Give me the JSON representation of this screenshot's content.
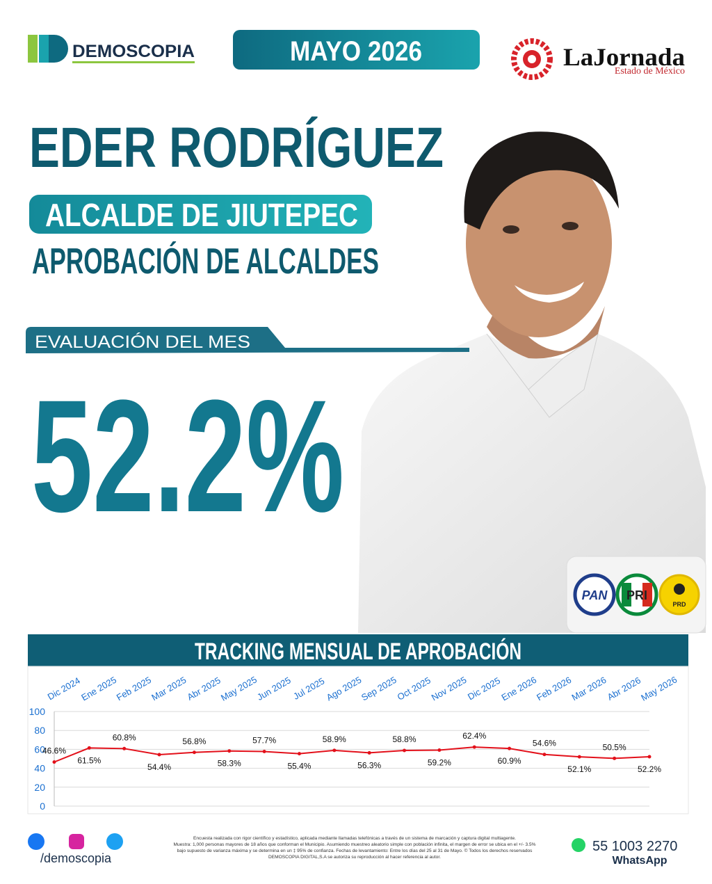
{
  "header": {
    "brand": "DEMOSCOPIA",
    "date_badge": "MAYO 2026",
    "partner": "LaJornada",
    "partner_sub": "Estado de México"
  },
  "headline": {
    "name": "EDER RODRÍGUEZ",
    "role": "ALCALDE DE JIUTEPEC",
    "topic": "APROBACIÓN DE ALCALDES"
  },
  "evaluation": {
    "label": "EVALUACIÓN DEL MES",
    "value": "52.2%"
  },
  "parties": [
    "PAN",
    "PRI",
    "PRD"
  ],
  "chart_data": {
    "type": "line",
    "title": "TRACKING MENSUAL DE APROBACIÓN",
    "categories": [
      "Dic 2024",
      "Ene 2025",
      "Feb 2025",
      "Mar 2025",
      "Abr 2025",
      "May 2025",
      "Jun 2025",
      "Jul 2025",
      "Ago 2025",
      "Sep 2025",
      "Oct 2025",
      "Nov 2025",
      "Dic 2025",
      "Ene 2026",
      "Feb 2026",
      "Mar 2026",
      "Abr 2026",
      "May 2026"
    ],
    "values": [
      46.6,
      61.5,
      60.8,
      54.4,
      56.8,
      58.3,
      57.7,
      55.4,
      58.9,
      56.3,
      58.8,
      59.2,
      62.4,
      60.9,
      54.6,
      52.1,
      50.5,
      52.2
    ],
    "value_labels": [
      "46.6%",
      "61.5%",
      "60.8%",
      "54.4%",
      "56.8%",
      "58.3%",
      "57.7%",
      "55.4%",
      "58.9%",
      "56.3%",
      "58.8%",
      "59.2%",
      "62.4%",
      "60.9%",
      "54.6%",
      "52.1%",
      "50.5%",
      "52.2%"
    ],
    "color": "#e3101a",
    "ylim": [
      0,
      100
    ],
    "yticks": [
      0,
      20,
      40,
      60,
      80,
      100
    ],
    "grid": true
  },
  "footer": {
    "handle": "/demoscopia",
    "disclaimer": [
      "Encuesta realizada con rigor científico y estadístico, aplicada mediante llamadas telefónicas a través de un sistema de marcación y captura digital multiagente.",
      "Muestra: 1,000 personas mayores de 18 años que conforman el Municipio. Asumiendo muestreo aleatorio simple con población infinita, el margen de error se ubica en el +/- 3.5%",
      "bajo supuesto de varianza máxima y se determina en un ‡ 95% de confianza. Fechas de levantamiento: Entre los días del 25 al 31 de Mayo. © Todos los derechos reservados",
      "DEMOSCOPIA DIGITAL,S.A se autoriza su reproducción al hacer referencia al autor."
    ],
    "phone": "55 1003 2270",
    "phone_channel": "WhatsApp"
  }
}
